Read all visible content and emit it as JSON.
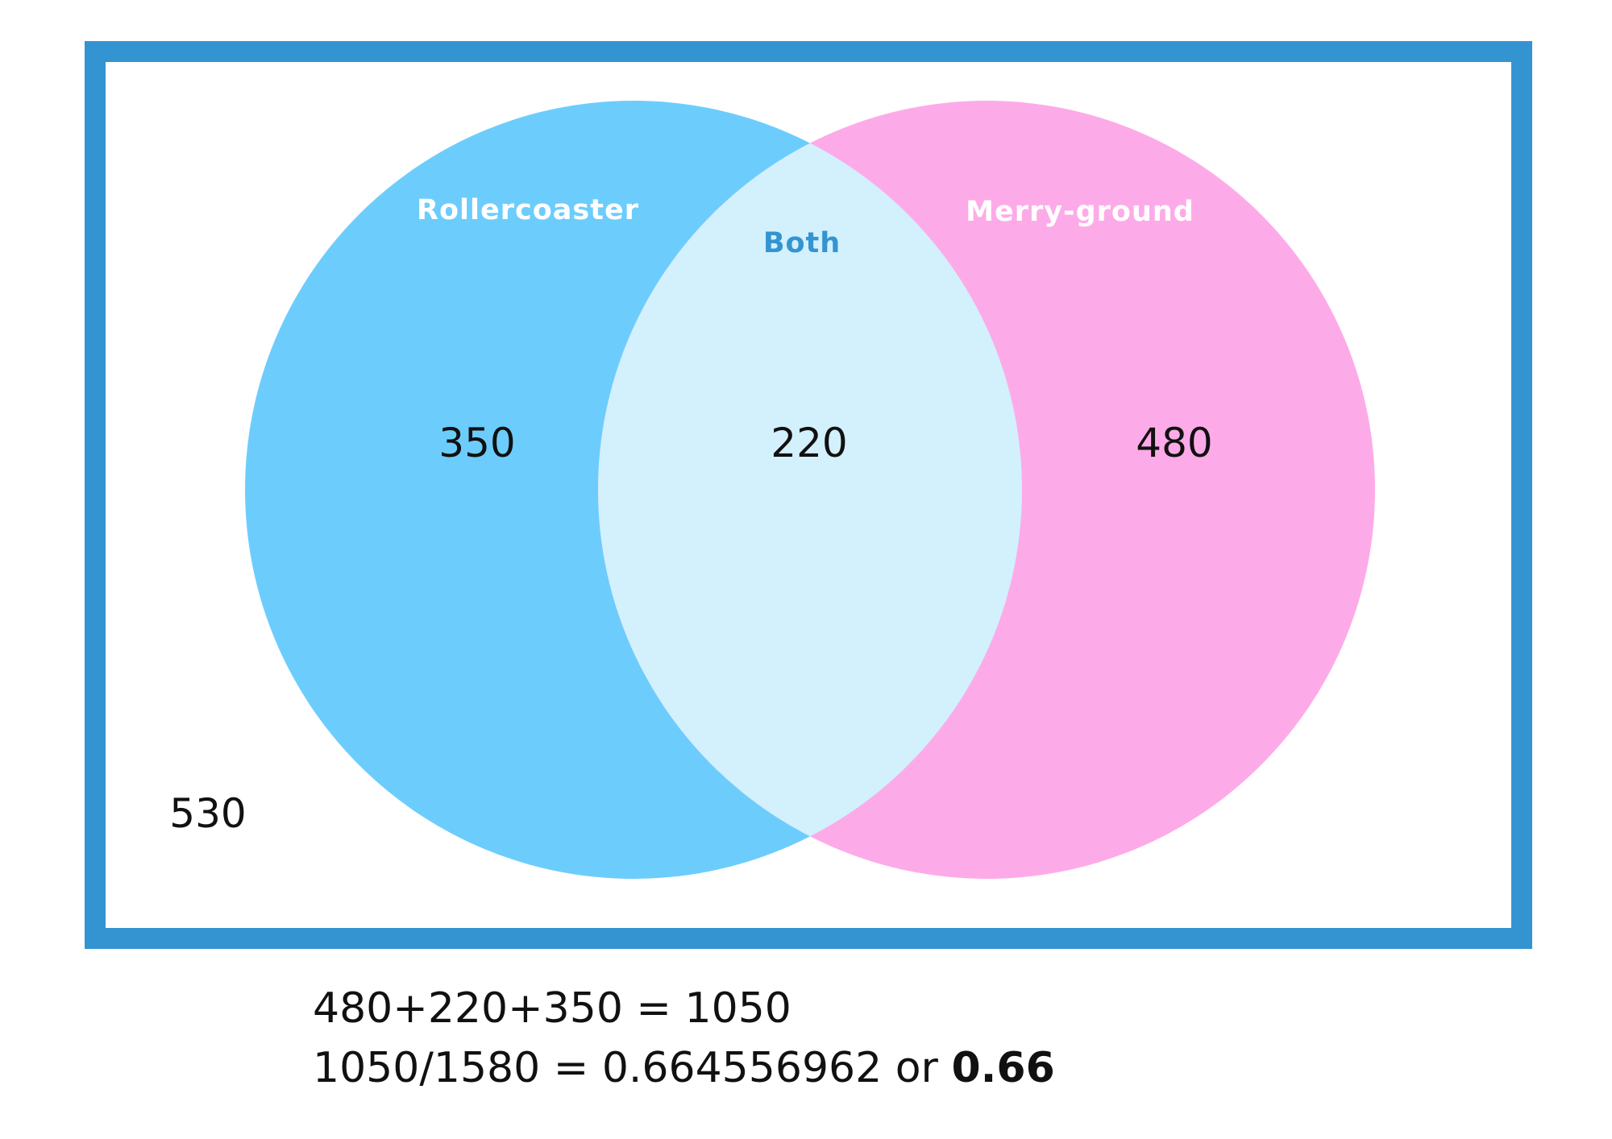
{
  "colors": {
    "frame": "#3494d2",
    "set_a": "#6ccdfd",
    "set_b": "#fdabe8",
    "overlap": "#d3f0fd",
    "label_light": "#ffffff",
    "label_overlap": "#3494d2"
  },
  "venn": {
    "sets": [
      {
        "label": "Rollercoaster",
        "only_value": "350"
      },
      {
        "label": "Merry-ground",
        "only_value": "480"
      }
    ],
    "overlap": {
      "label": "Both",
      "value": "220"
    },
    "outside_value": "530"
  },
  "calculation": {
    "line1": "480+220+350 = 1050",
    "line2_prefix": "1050/1580 = 0.664556962 or ",
    "line2_result": "0.66"
  }
}
